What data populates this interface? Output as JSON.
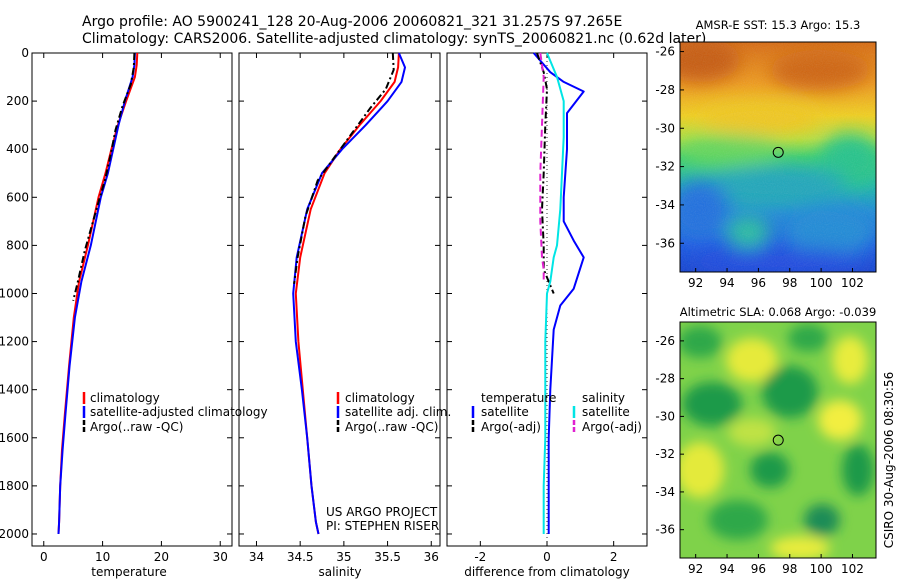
{
  "header": {
    "line1": "Argo profile: AO 5900241_128 20-Aug-2006 20060821_321 31.257S 97.265E",
    "line2": "Climatology: CARS2006. Satellite-adjusted climatology: synTS_20060821.nc (0.62d later)"
  },
  "credit": {
    "project": "US ARGO PROJECT",
    "pi": "PI: STEPHEN RISER",
    "stamp": "CSIRO 30-Aug-2006 08:30:56"
  },
  "colors": {
    "climatology": "#ff0000",
    "satellite": "#0000ff",
    "argo": "#000000",
    "salinity_satellite": "#00e5e5",
    "salinity_argo": "#e020d0"
  },
  "chart_data": [
    {
      "id": "temperature",
      "type": "line",
      "xlabel": "temperature",
      "ylabel": "",
      "xlim": [
        -2,
        32
      ],
      "ylim": [
        0,
        2050
      ],
      "y_reversed": true,
      "xticks": [
        0,
        10,
        20,
        30
      ],
      "yticks": [
        0,
        200,
        400,
        600,
        800,
        1000,
        1200,
        1400,
        1600,
        1800,
        2000
      ],
      "legend": [
        "climatology",
        "satellite-adjusted climatology",
        "Argo(..raw -QC)"
      ],
      "series": [
        {
          "name": "climatology",
          "color": "#ff0000",
          "dash": "",
          "x": [
            15.9,
            15.8,
            15.5,
            14.0,
            12.6,
            11.5,
            10.5,
            9.3,
            7.5,
            6.0,
            5.1,
            4.3,
            3.6,
            3.1,
            2.8,
            2.6,
            2.5
          ],
          "y": [
            0,
            50,
            100,
            200,
            300,
            400,
            500,
            600,
            800,
            950,
            1100,
            1300,
            1500,
            1650,
            1800,
            1950,
            2000
          ]
        },
        {
          "name": "satellite-adjusted climatology",
          "color": "#0000ff",
          "dash": "",
          "x": [
            15.5,
            15.4,
            15.1,
            13.8,
            12.7,
            11.8,
            10.9,
            9.7,
            8.0,
            6.4,
            5.3,
            4.4,
            3.7,
            3.2,
            2.8,
            2.6,
            2.5
          ],
          "y": [
            0,
            50,
            100,
            200,
            300,
            400,
            500,
            600,
            800,
            950,
            1100,
            1300,
            1500,
            1650,
            1800,
            1950,
            2000
          ]
        },
        {
          "name": "Argo(..raw -QC)",
          "color": "#000000",
          "dash": "7,3,2,3",
          "x": [
            15.4,
            15.3,
            14.8,
            13.4,
            12.2,
            11.4,
            10.5,
            9.3,
            7.0,
            5.8,
            5.0
          ],
          "y": [
            0,
            60,
            130,
            220,
            320,
            420,
            520,
            620,
            820,
            950,
            1030
          ]
        }
      ]
    },
    {
      "id": "salinity",
      "type": "line",
      "xlabel": "salinity",
      "ylabel": "",
      "xlim": [
        33.8,
        36.1
      ],
      "ylim": [
        0,
        2050
      ],
      "y_reversed": true,
      "xticks": [
        34,
        34.5,
        35,
        35.5,
        36
      ],
      "legend": [
        "climatology",
        "satellite adj. clim.",
        "Argo(..raw -QC)"
      ],
      "series": [
        {
          "name": "climatology",
          "color": "#ff0000",
          "dash": "",
          "x": [
            35.63,
            35.62,
            35.58,
            35.42,
            35.18,
            34.96,
            34.78,
            34.62,
            34.5,
            34.45,
            34.48,
            34.53,
            34.58,
            34.63,
            34.68,
            34.71
          ],
          "y": [
            0,
            60,
            120,
            200,
            300,
            400,
            500,
            650,
            850,
            1000,
            1200,
            1400,
            1600,
            1800,
            1950,
            2000
          ]
        },
        {
          "name": "satellite adj. clim.",
          "color": "#0000ff",
          "dash": "",
          "x": [
            35.63,
            35.7,
            35.66,
            35.5,
            35.25,
            34.98,
            34.75,
            34.58,
            34.46,
            34.42,
            34.45,
            34.52,
            34.58,
            34.63,
            34.68,
            34.71
          ],
          "y": [
            0,
            60,
            120,
            200,
            300,
            400,
            500,
            650,
            850,
            1000,
            1200,
            1400,
            1600,
            1800,
            1950,
            2000
          ]
        },
        {
          "name": "Argo(..raw -QC)",
          "color": "#000000",
          "dash": "7,3,2,3",
          "x": [
            35.56,
            35.57,
            35.48,
            35.3,
            35.1,
            34.9,
            34.7,
            34.56,
            34.47,
            34.43
          ],
          "y": [
            0,
            70,
            150,
            230,
            330,
            430,
            530,
            680,
            850,
            960
          ]
        }
      ]
    },
    {
      "id": "difference",
      "type": "line",
      "xlabel": "difference from climatology",
      "ylabel": "",
      "xlim": [
        -3,
        3
      ],
      "ylim": [
        0,
        2050
      ],
      "y_reversed": true,
      "xticks": [
        -2,
        0,
        2
      ],
      "legend_groups": [
        {
          "title": "temperature",
          "items": [
            "satellite",
            "Argo(-adj)"
          ]
        },
        {
          "title": "salinity",
          "items": [
            "satellite",
            "Argo(-adj)"
          ]
        }
      ],
      "series": [
        {
          "name": "temperature satellite",
          "color": "#0000ff",
          "dash": "",
          "x": [
            -0.4,
            0.1,
            0.5,
            1.1,
            0.6,
            0.6,
            0.5,
            0.5,
            0.8,
            1.1,
            0.8,
            0.4,
            0.2,
            0.1,
            0.05,
            0.05,
            0.05
          ],
          "y": [
            0,
            80,
            120,
            160,
            250,
            400,
            600,
            700,
            780,
            850,
            980,
            1050,
            1150,
            1400,
            1600,
            1900,
            2000
          ]
        },
        {
          "name": "temperature Argo(-adj)",
          "color": "#000000",
          "dash": "7,3,2,3",
          "x": [
            -0.3,
            -0.1,
            0.0,
            -0.05,
            -0.1,
            -0.15,
            -0.1,
            -0.1,
            0.05,
            0.2
          ],
          "y": [
            0,
            80,
            150,
            300,
            500,
            650,
            800,
            900,
            950,
            1000
          ]
        },
        {
          "name": "salinity satellite",
          "color": "#00e5e5",
          "dash": "",
          "x": [
            0.0,
            0.3,
            0.5,
            0.5,
            0.45,
            0.4,
            0.3,
            0.2,
            0.1,
            0.0,
            -0.05,
            -0.05,
            -0.05,
            -0.1,
            -0.1
          ],
          "y": [
            0,
            100,
            200,
            350,
            500,
            650,
            800,
            850,
            950,
            1000,
            1200,
            1400,
            1600,
            1800,
            2000
          ]
        },
        {
          "name": "salinity Argo(-adj)",
          "color": "#e020d0",
          "dash": "7,4",
          "x": [
            -0.2,
            -0.1,
            -0.15,
            -0.2,
            -0.2,
            -0.15,
            -0.1,
            -0.1
          ],
          "y": [
            0,
            100,
            300,
            500,
            700,
            850,
            900,
            950
          ]
        }
      ]
    },
    {
      "id": "sst-map",
      "type": "heatmap",
      "title": "AMSR-E SST: 15.3 Argo: 15.3",
      "xlim": [
        91,
        103.5
      ],
      "ylim": [
        -37.5,
        -25.5
      ],
      "xticks": [
        92,
        94,
        96,
        98,
        100,
        102
      ],
      "yticks": [
        -26,
        -28,
        -30,
        -32,
        -34,
        -36
      ],
      "marker": {
        "lon": 97.265,
        "lat": -31.257
      }
    },
    {
      "id": "sla-map",
      "type": "heatmap",
      "title": "Altimetric SLA: 0.068 Argo: -0.039",
      "xlim": [
        91,
        103.5
      ],
      "ylim": [
        -37.5,
        -25
      ],
      "xticks": [
        92,
        94,
        96,
        98,
        100,
        102
      ],
      "yticks": [
        -26,
        -28,
        -30,
        -32,
        -34,
        -36
      ],
      "marker": {
        "lon": 97.265,
        "lat": -31.257
      }
    }
  ]
}
